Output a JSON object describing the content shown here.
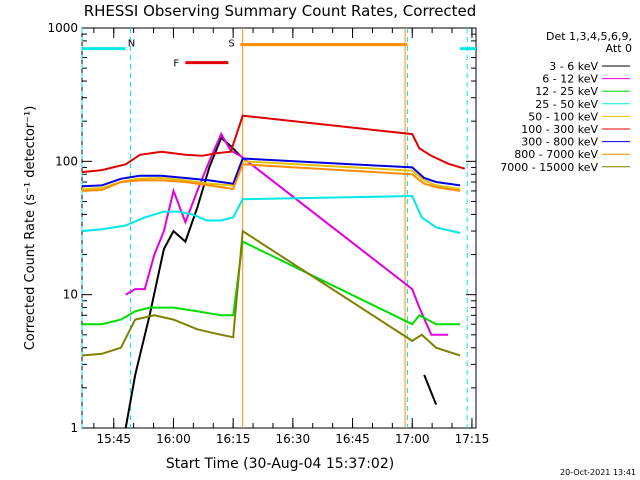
{
  "chart_data": {
    "type": "line",
    "title": "RHESSI Observing Summary Count Rates, Corrected",
    "xlabel": "Start Time (30-Aug-04 15:37:02)",
    "ylabel": "Corrected Count Rate (s⁻¹ detector⁻¹)",
    "y_scale": "log",
    "ylim": [
      1,
      1000
    ],
    "xlim": [
      15.617,
      17.267
    ],
    "x_ticks": [
      {
        "label": "15:45",
        "value": 15.75
      },
      {
        "label": "16:00",
        "value": 16.0
      },
      {
        "label": "16:15",
        "value": 16.25
      },
      {
        "label": "16:30",
        "value": 16.5
      },
      {
        "label": "16:45",
        "value": 16.75
      },
      {
        "label": "17:00",
        "value": 17.0
      },
      {
        "label": "17:15",
        "value": 17.25
      }
    ],
    "y_ticks": [
      {
        "label": "1",
        "value": 1
      },
      {
        "label": "10",
        "value": 10
      },
      {
        "label": "100",
        "value": 100
      },
      {
        "label": "1000",
        "value": 1000
      }
    ],
    "legend_header": [
      "Det 1,3,4,5,6,9,",
      "Att 0"
    ],
    "series": [
      {
        "name": "3 - 6 keV",
        "color": "#000000",
        "x": [
          15.617,
          15.8,
          15.84,
          15.9,
          15.96,
          16.0,
          16.05,
          16.1,
          16.15,
          16.2,
          16.24,
          16.28,
          17.0,
          17.05,
          17.1
        ],
        "y": [
          null,
          1.0,
          2.5,
          7,
          22,
          30,
          25,
          45,
          90,
          150,
          130,
          110,
          null,
          2.5,
          1.5
        ]
      },
      {
        "name": "6 - 12 keV",
        "color": "#e000e0",
        "x": [
          15.8,
          15.84,
          15.88,
          15.92,
          15.96,
          16.0,
          16.05,
          16.1,
          16.15,
          16.2,
          16.24,
          16.28,
          17.0,
          17.03,
          17.08,
          17.15
        ],
        "y": [
          10,
          11,
          11,
          20,
          30,
          60,
          35,
          60,
          100,
          160,
          120,
          110,
          11,
          8,
          5,
          5
        ]
      },
      {
        "name": "12 - 25 keV",
        "color": "#00dd00",
        "x": [
          15.617,
          15.7,
          15.78,
          15.84,
          15.9,
          16.0,
          16.1,
          16.2,
          16.25,
          16.29,
          17.0,
          17.03,
          17.1,
          17.2
        ],
        "y": [
          6,
          6,
          6.5,
          7.5,
          8,
          8,
          7.5,
          7,
          7,
          25,
          6,
          7,
          6,
          6
        ]
      },
      {
        "name": "25 - 50 keV",
        "color": "#00e8e8",
        "x": [
          15.617,
          15.7,
          15.8,
          15.88,
          15.96,
          16.02,
          16.08,
          16.14,
          16.2,
          16.25,
          16.29,
          17.0,
          17.04,
          17.1,
          17.2
        ],
        "y": [
          30,
          31,
          33,
          38,
          42,
          42,
          40,
          36,
          36,
          38,
          52,
          55,
          38,
          32,
          29
        ]
      },
      {
        "name": "50 - 100 keV",
        "color": "#e0c000",
        "x": [
          15.617,
          15.7,
          15.78,
          15.85,
          15.95,
          16.05,
          16.15,
          16.25,
          16.29,
          17.0,
          17.05,
          17.1,
          17.2
        ],
        "y": [
          62,
          63,
          70,
          74,
          75,
          72,
          68,
          66,
          100,
          85,
          72,
          66,
          62
        ]
      },
      {
        "name": "100 - 300 keV",
        "color": "#e00000",
        "x": [
          15.617,
          15.7,
          15.8,
          15.86,
          15.95,
          16.05,
          16.12,
          16.18,
          16.24,
          16.29,
          17.0,
          17.03,
          17.08,
          17.15,
          17.22
        ],
        "y": [
          83,
          86,
          95,
          112,
          118,
          112,
          110,
          115,
          118,
          220,
          160,
          125,
          110,
          96,
          88
        ]
      },
      {
        "name": "300 - 800 keV",
        "color": "#0000e0",
        "x": [
          15.617,
          15.7,
          15.78,
          15.86,
          15.95,
          16.05,
          16.15,
          16.25,
          16.29,
          17.0,
          17.05,
          17.1,
          17.2
        ],
        "y": [
          65,
          66,
          74,
          78,
          78,
          75,
          72,
          68,
          105,
          90,
          75,
          70,
          66
        ]
      },
      {
        "name": "800 - 7000 keV",
        "color": "#ff8c00",
        "x": [
          15.617,
          15.7,
          15.78,
          15.86,
          15.95,
          16.05,
          16.15,
          16.25,
          16.29,
          17.0,
          17.05,
          17.1,
          17.2
        ],
        "y": [
          60,
          61,
          70,
          72,
          72,
          70,
          66,
          62,
          95,
          80,
          68,
          64,
          60
        ]
      },
      {
        "name": "7000 - 15000 keV",
        "color": "#808000",
        "x": [
          15.617,
          15.7,
          15.78,
          15.84,
          15.92,
          16.0,
          16.1,
          16.2,
          16.25,
          16.29,
          17.0,
          17.04,
          17.1,
          17.2
        ],
        "y": [
          3.5,
          3.6,
          4.0,
          6.5,
          7,
          6.5,
          5.5,
          5.0,
          4.8,
          30,
          4.5,
          5,
          4,
          3.5
        ]
      }
    ],
    "annotations": {
      "night_bars": [
        {
          "label": "N",
          "x_start": 15.617,
          "x_end": 15.8,
          "y": 700,
          "color": "#00e8e8"
        },
        {
          "label": "",
          "x_start": 17.2,
          "x_end": 17.267,
          "y": 700,
          "color": "#00e8e8"
        }
      ],
      "flare_bar": {
        "label": "F",
        "x_start": 16.05,
        "x_end": 16.23,
        "y": 550,
        "color": "#e00000"
      },
      "saa_bar": {
        "label": "S",
        "x_start": 16.28,
        "x_end": 16.98,
        "y": 750,
        "color": "#ff8c00"
      },
      "night_boundaries": [
        15.617,
        15.82,
        16.98,
        17.23
      ],
      "saa_boundaries": [
        16.29,
        16.97
      ]
    }
  },
  "timestamp": "20-Oct-2021 13:41"
}
